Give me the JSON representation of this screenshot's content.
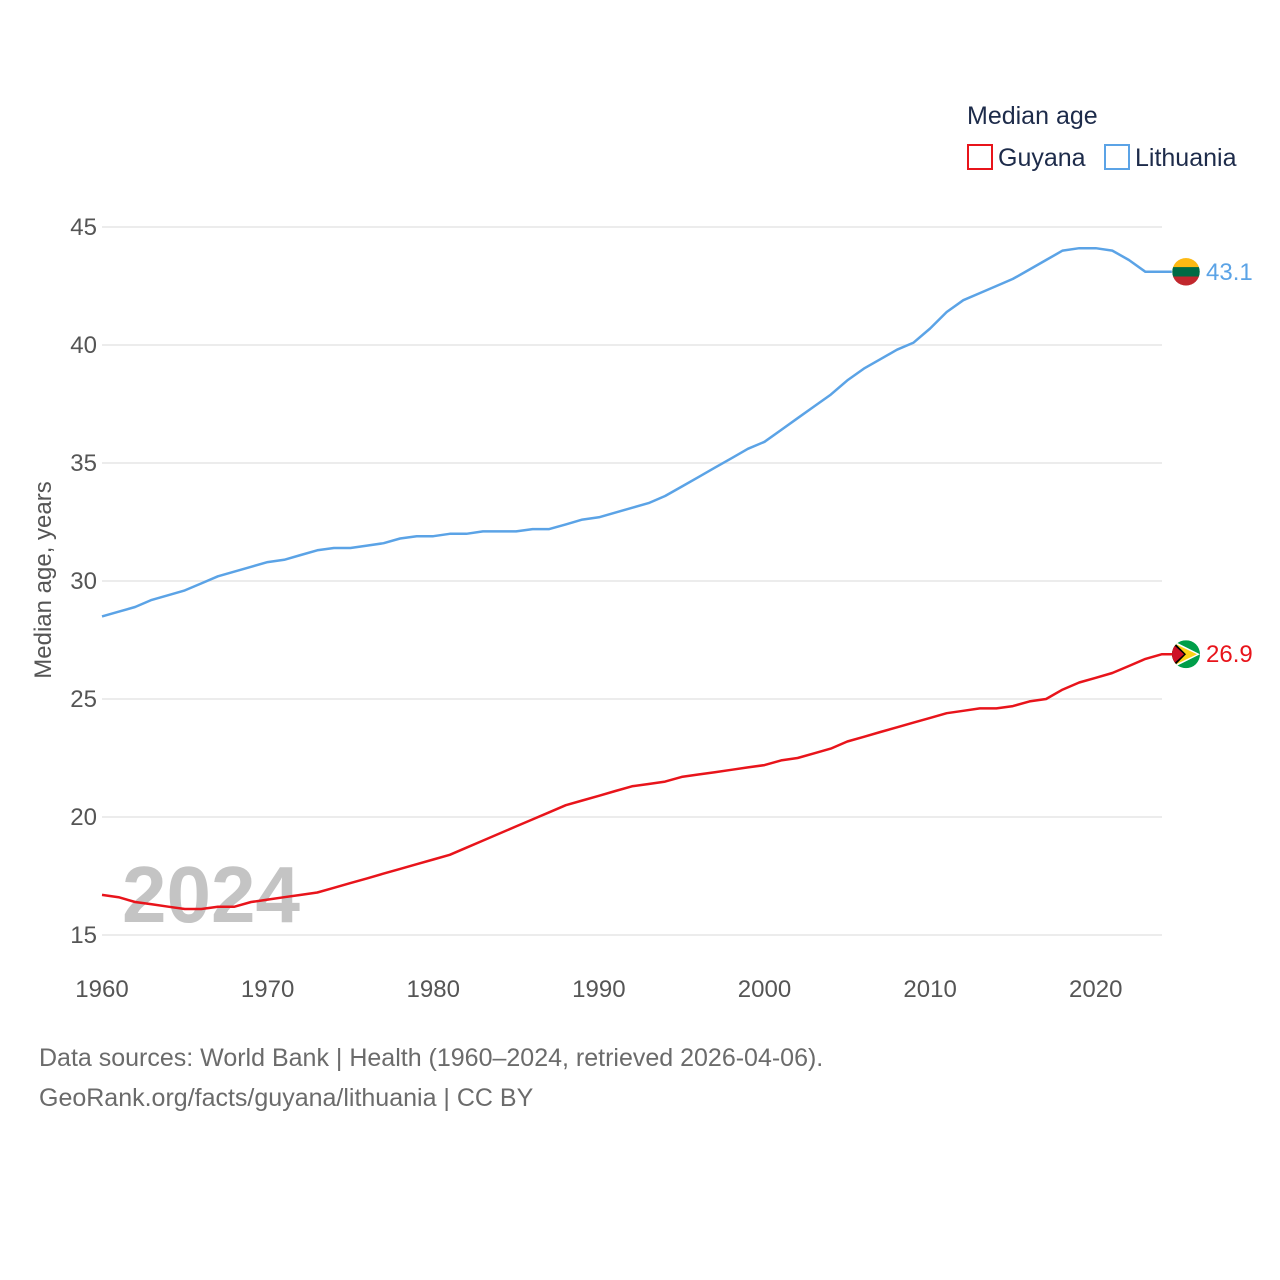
{
  "chart_data": {
    "type": "line",
    "legend_title": "Median age",
    "ylabel": "Median age, years",
    "xlabel": "",
    "ylim": [
      15,
      45
    ],
    "yticks": [
      15,
      20,
      25,
      30,
      35,
      40,
      45
    ],
    "xlim": [
      1960,
      2024
    ],
    "xticks": [
      1960,
      1970,
      1980,
      1990,
      2000,
      2010,
      2020
    ],
    "watermark_year": "2024",
    "grid": true,
    "legend_position": "top-right",
    "x": [
      1960,
      1961,
      1962,
      1963,
      1964,
      1965,
      1966,
      1967,
      1968,
      1969,
      1970,
      1971,
      1972,
      1973,
      1974,
      1975,
      1976,
      1977,
      1978,
      1979,
      1980,
      1981,
      1982,
      1983,
      1984,
      1985,
      1986,
      1987,
      1988,
      1989,
      1990,
      1991,
      1992,
      1993,
      1994,
      1995,
      1996,
      1997,
      1998,
      1999,
      2000,
      2001,
      2002,
      2003,
      2004,
      2005,
      2006,
      2007,
      2008,
      2009,
      2010,
      2011,
      2012,
      2013,
      2014,
      2015,
      2016,
      2017,
      2018,
      2019,
      2020,
      2021,
      2022,
      2023,
      2024
    ],
    "series": [
      {
        "name": "Guyana",
        "color": "#e8141b",
        "end_label": "26.9",
        "flag": "guyana-flag-icon",
        "values": [
          16.7,
          16.6,
          16.4,
          16.3,
          16.2,
          16.1,
          16.1,
          16.2,
          16.2,
          16.4,
          16.5,
          16.6,
          16.7,
          16.8,
          17.0,
          17.2,
          17.4,
          17.6,
          17.8,
          18.0,
          18.2,
          18.4,
          18.7,
          19.0,
          19.3,
          19.6,
          19.9,
          20.2,
          20.5,
          20.7,
          20.9,
          21.1,
          21.3,
          21.4,
          21.5,
          21.7,
          21.8,
          21.9,
          22.0,
          22.1,
          22.2,
          22.4,
          22.5,
          22.7,
          22.9,
          23.2,
          23.4,
          23.6,
          23.8,
          24.0,
          24.2,
          24.4,
          24.5,
          24.6,
          24.6,
          24.7,
          24.9,
          25.0,
          25.4,
          25.7,
          25.9,
          26.1,
          26.4,
          26.7,
          26.9
        ]
      },
      {
        "name": "Lithuania",
        "color": "#5ba3e6",
        "end_label": "43.1",
        "flag": "lithuania-flag-icon",
        "values": [
          28.5,
          28.7,
          28.9,
          29.2,
          29.4,
          29.6,
          29.9,
          30.2,
          30.4,
          30.6,
          30.8,
          30.9,
          31.1,
          31.3,
          31.4,
          31.4,
          31.5,
          31.6,
          31.8,
          31.9,
          31.9,
          32.0,
          32.0,
          32.1,
          32.1,
          32.1,
          32.2,
          32.2,
          32.4,
          32.6,
          32.7,
          32.9,
          33.1,
          33.3,
          33.6,
          34.0,
          34.4,
          34.8,
          35.2,
          35.6,
          35.9,
          36.4,
          36.9,
          37.4,
          37.9,
          38.5,
          39.0,
          39.4,
          39.8,
          40.1,
          40.7,
          41.4,
          41.9,
          42.2,
          42.5,
          42.8,
          43.2,
          43.6,
          44.0,
          44.1,
          44.1,
          44.0,
          43.6,
          43.1,
          43.1
        ]
      }
    ]
  },
  "footer": {
    "line1": "Data sources: World Bank | Health (1960–2024, retrieved 2026-04-06).",
    "line2": "GeoRank.org/facts/guyana/lithuania | CC BY"
  }
}
